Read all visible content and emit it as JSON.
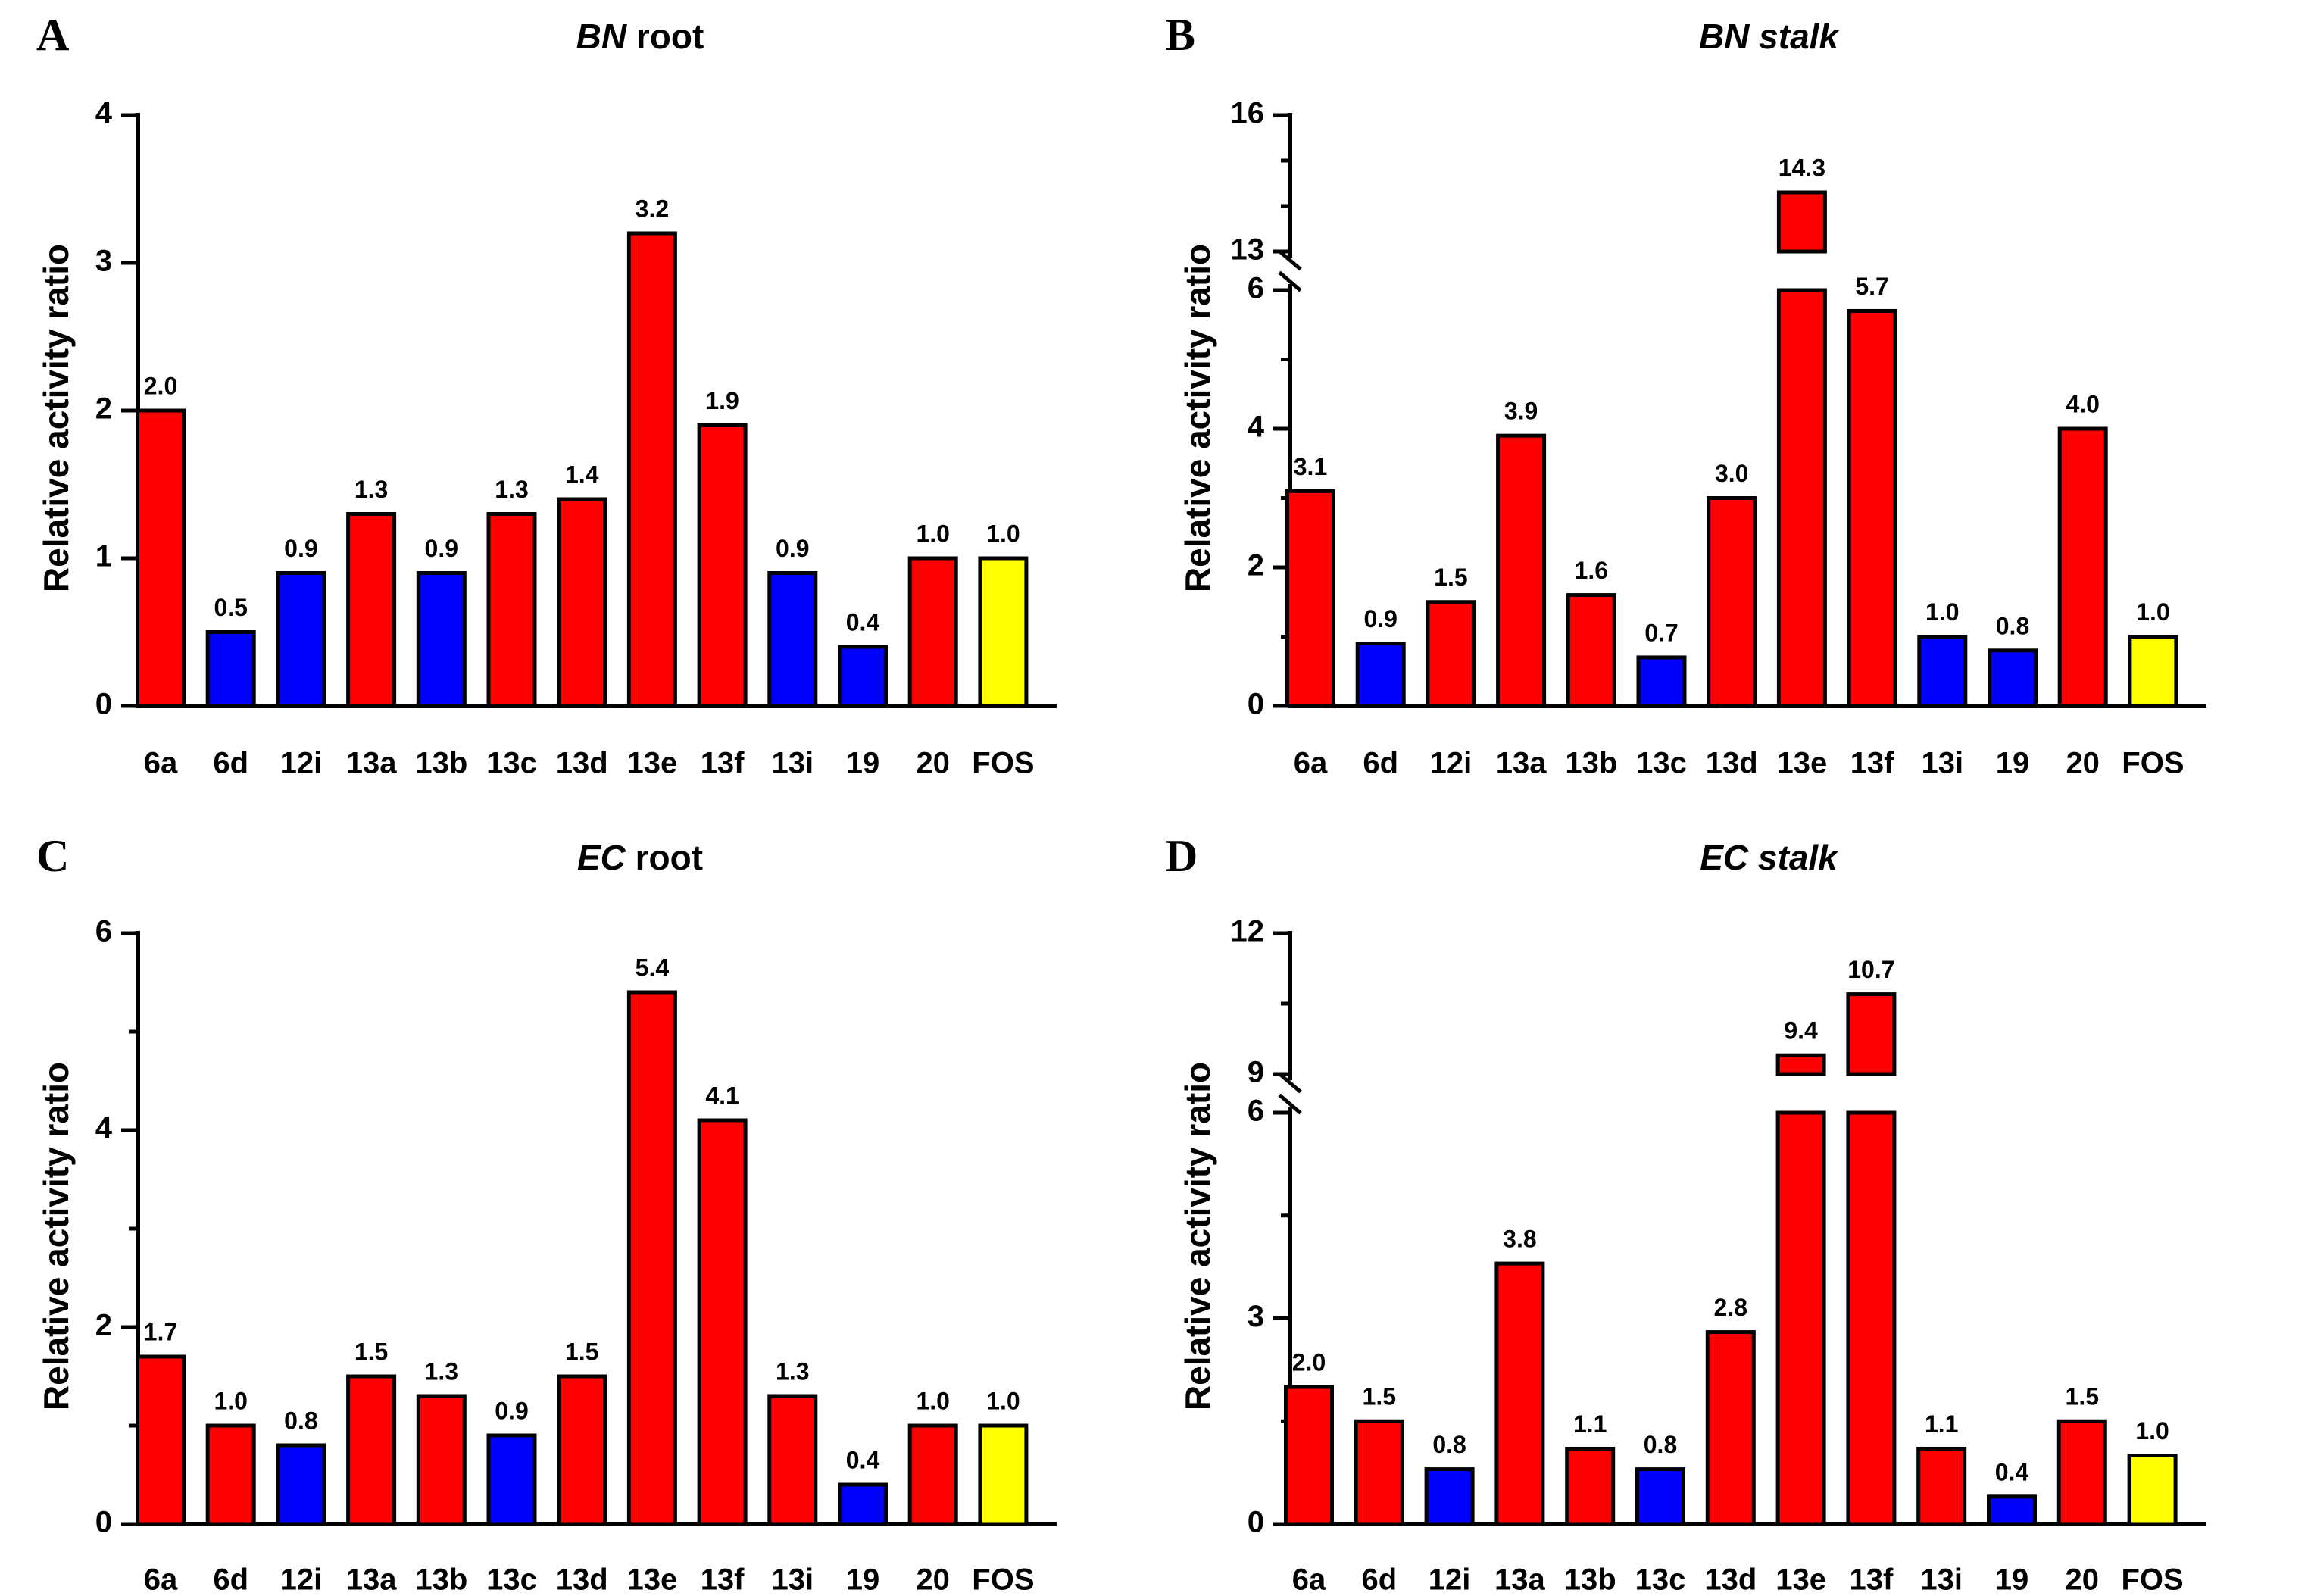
{
  "colors": {
    "red": "#ff0000",
    "blue": "#0000ff",
    "yellow": "#ffff00",
    "black": "#000000"
  },
  "chart_data": [
    {
      "panel": "A",
      "type": "bar",
      "title_italic": "BN",
      "title_rest": " root",
      "ylabel": "Relative activity ratio",
      "categories": [
        "6a",
        "6d",
        "12i",
        "13a",
        "13b",
        "13c",
        "13d",
        "13e",
        "13f",
        "13i",
        "19",
        "20",
        "FOS"
      ],
      "values": [
        2.0,
        0.5,
        0.9,
        1.3,
        0.9,
        1.3,
        1.4,
        3.2,
        1.9,
        0.9,
        0.4,
        1.0,
        1.0
      ],
      "labels": [
        "2.0",
        "0.5",
        "0.9",
        "1.3",
        "0.9",
        "1.3",
        "1.4",
        "3.2",
        "1.9",
        "0.9",
        "0.4",
        "1.0",
        "1.0"
      ],
      "colors": [
        "red",
        "blue",
        "blue",
        "red",
        "blue",
        "red",
        "red",
        "red",
        "red",
        "blue",
        "blue",
        "red",
        "yellow"
      ],
      "ylim": [
        0,
        4
      ],
      "yticks": [
        0,
        1,
        2,
        3,
        4
      ],
      "minor_ticks": [],
      "axis_break": null
    },
    {
      "panel": "B",
      "type": "bar",
      "title_italic": "BN stalk",
      "title_rest": "",
      "ylabel": "Relative activity ratio",
      "categories": [
        "6a",
        "6d",
        "12i",
        "13a",
        "13b",
        "13c",
        "13d",
        "13e",
        "13f",
        "13i",
        "19",
        "20",
        "FOS"
      ],
      "values": [
        3.1,
        0.9,
        1.5,
        3.9,
        1.6,
        0.7,
        3.0,
        14.3,
        5.7,
        1.0,
        0.8,
        4.0,
        1.0
      ],
      "labels": [
        "3.1",
        "0.9",
        "1.5",
        "3.9",
        "1.6",
        "0.7",
        "3.0",
        "14.3",
        "5.7",
        "1.0",
        "0.8",
        "4.0",
        "1.0"
      ],
      "colors": [
        "red",
        "blue",
        "red",
        "red",
        "red",
        "blue",
        "red",
        "red",
        "red",
        "blue",
        "blue",
        "red",
        "yellow"
      ],
      "ylim": [
        0,
        16
      ],
      "yticks": [
        0,
        2,
        4,
        6,
        13,
        16
      ],
      "minor_ticks": [
        1,
        3,
        5,
        14,
        15
      ],
      "axis_break": {
        "lower_max": 6,
        "upper_min": 13,
        "upper_max": 16
      }
    },
    {
      "panel": "C",
      "type": "bar",
      "title_italic": "EC",
      "title_rest": " root",
      "ylabel": "Relative activity ratio",
      "categories": [
        "6a",
        "6d",
        "12i",
        "13a",
        "13b",
        "13c",
        "13d",
        "13e",
        "13f",
        "13i",
        "19",
        "20",
        "FOS"
      ],
      "values": [
        1.7,
        1.0,
        0.8,
        1.5,
        1.3,
        0.9,
        1.5,
        5.4,
        4.1,
        1.3,
        0.4,
        1.0,
        1.0
      ],
      "labels": [
        "1.7",
        "1.0",
        "0.8",
        "1.5",
        "1.3",
        "0.9",
        "1.5",
        "5.4",
        "4.1",
        "1.3",
        "0.4",
        "1.0",
        "1.0"
      ],
      "colors": [
        "red",
        "red",
        "blue",
        "red",
        "red",
        "blue",
        "red",
        "red",
        "red",
        "red",
        "blue",
        "red",
        "yellow"
      ],
      "ylim": [
        0,
        6
      ],
      "yticks": [
        0,
        2,
        4,
        6
      ],
      "minor_ticks": [
        1,
        3,
        5
      ],
      "axis_break": null
    },
    {
      "panel": "D",
      "type": "bar",
      "title_italic": "EC stalk",
      "title_rest": "",
      "ylabel": "Relative activity ratio",
      "categories": [
        "6a",
        "6d",
        "12i",
        "13a",
        "13b",
        "13c",
        "13d",
        "13e",
        "13f",
        "13i",
        "19",
        "20",
        "FOS"
      ],
      "values": [
        2.0,
        1.5,
        0.8,
        3.8,
        1.1,
        0.8,
        2.8,
        9.4,
        10.7,
        1.1,
        0.4,
        1.5,
        1.0
      ],
      "labels": [
        "2.0",
        "1.5",
        "0.8",
        "3.8",
        "1.1",
        "0.8",
        "2.8",
        "9.4",
        "10.7",
        "1.1",
        "0.4",
        "1.5",
        "1.0"
      ],
      "colors": [
        "red",
        "red",
        "blue",
        "red",
        "red",
        "blue",
        "red",
        "red",
        "red",
        "red",
        "blue",
        "red",
        "yellow"
      ],
      "ylim": [
        0,
        12
      ],
      "yticks": [
        0,
        3,
        6,
        9,
        12
      ],
      "minor_ticks": [
        1.5,
        4.5,
        10.5
      ],
      "axis_break": {
        "lower_max": 6,
        "upper_min": 9,
        "upper_max": 12
      }
    }
  ]
}
